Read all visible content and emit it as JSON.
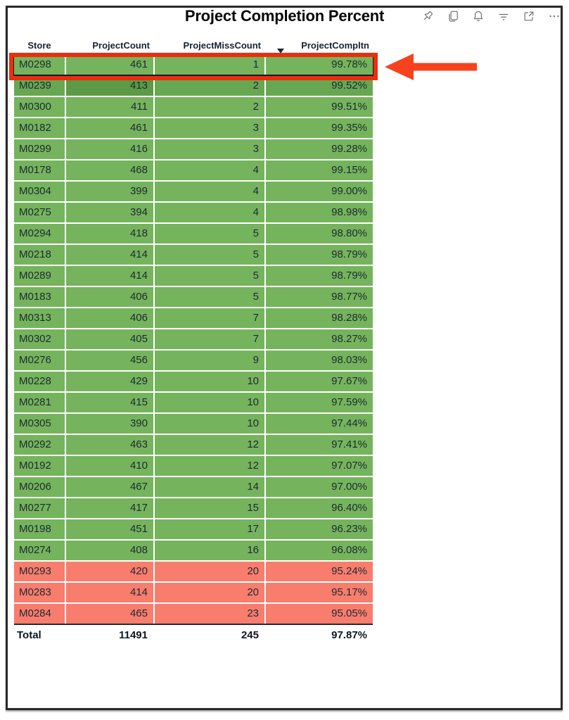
{
  "title": "Project Completion Percent",
  "toolbar": {
    "icons": [
      {
        "name": "pin-icon"
      },
      {
        "name": "copy-icon"
      },
      {
        "name": "alerts-bell-icon"
      },
      {
        "name": "filter-icon"
      },
      {
        "name": "popout-focus-icon"
      },
      {
        "name": "more-options-icon"
      }
    ]
  },
  "table": {
    "columns": [
      {
        "key": "store",
        "label": "Store",
        "align": "center"
      },
      {
        "key": "project_count",
        "label": "ProjectCount",
        "align": "right"
      },
      {
        "key": "project_miss_count",
        "label": "ProjectMissCount",
        "align": "right"
      },
      {
        "key": "project_compltn",
        "label": "ProjectCompltn",
        "align": "right"
      }
    ],
    "sort_indicator": {
      "column": "project_compltn",
      "direction": "descending"
    },
    "rows": [
      {
        "store": "M0298",
        "project_count": "461",
        "project_miss_count": "1",
        "project_compltn": "99.78%",
        "band": "green"
      },
      {
        "store": "M0239",
        "project_count": "413",
        "project_miss_count": "2",
        "project_compltn": "99.52%",
        "band": "green",
        "tone": "darker",
        "hover_cell": 1
      },
      {
        "store": "M0300",
        "project_count": "411",
        "project_miss_count": "2",
        "project_compltn": "99.51%",
        "band": "green"
      },
      {
        "store": "M0182",
        "project_count": "461",
        "project_miss_count": "3",
        "project_compltn": "99.35%",
        "band": "green"
      },
      {
        "store": "M0299",
        "project_count": "416",
        "project_miss_count": "3",
        "project_compltn": "99.28%",
        "band": "green"
      },
      {
        "store": "M0178",
        "project_count": "468",
        "project_miss_count": "4",
        "project_compltn": "99.15%",
        "band": "green"
      },
      {
        "store": "M0304",
        "project_count": "399",
        "project_miss_count": "4",
        "project_compltn": "99.00%",
        "band": "green"
      },
      {
        "store": "M0275",
        "project_count": "394",
        "project_miss_count": "4",
        "project_compltn": "98.98%",
        "band": "green"
      },
      {
        "store": "M0294",
        "project_count": "418",
        "project_miss_count": "5",
        "project_compltn": "98.80%",
        "band": "green"
      },
      {
        "store": "M0218",
        "project_count": "414",
        "project_miss_count": "5",
        "project_compltn": "98.79%",
        "band": "green"
      },
      {
        "store": "M0289",
        "project_count": "414",
        "project_miss_count": "5",
        "project_compltn": "98.79%",
        "band": "green"
      },
      {
        "store": "M0183",
        "project_count": "406",
        "project_miss_count": "5",
        "project_compltn": "98.77%",
        "band": "green"
      },
      {
        "store": "M0313",
        "project_count": "406",
        "project_miss_count": "7",
        "project_compltn": "98.28%",
        "band": "green"
      },
      {
        "store": "M0302",
        "project_count": "405",
        "project_miss_count": "7",
        "project_compltn": "98.27%",
        "band": "green"
      },
      {
        "store": "M0276",
        "project_count": "456",
        "project_miss_count": "9",
        "project_compltn": "98.03%",
        "band": "green"
      },
      {
        "store": "M0228",
        "project_count": "429",
        "project_miss_count": "10",
        "project_compltn": "97.67%",
        "band": "green"
      },
      {
        "store": "M0281",
        "project_count": "415",
        "project_miss_count": "10",
        "project_compltn": "97.59%",
        "band": "green"
      },
      {
        "store": "M0305",
        "project_count": "390",
        "project_miss_count": "10",
        "project_compltn": "97.44%",
        "band": "green"
      },
      {
        "store": "M0292",
        "project_count": "463",
        "project_miss_count": "12",
        "project_compltn": "97.41%",
        "band": "green"
      },
      {
        "store": "M0192",
        "project_count": "410",
        "project_miss_count": "12",
        "project_compltn": "97.07%",
        "band": "green"
      },
      {
        "store": "M0206",
        "project_count": "467",
        "project_miss_count": "14",
        "project_compltn": "97.00%",
        "band": "green"
      },
      {
        "store": "M0277",
        "project_count": "417",
        "project_miss_count": "15",
        "project_compltn": "96.40%",
        "band": "green"
      },
      {
        "store": "M0198",
        "project_count": "451",
        "project_miss_count": "17",
        "project_compltn": "96.23%",
        "band": "green"
      },
      {
        "store": "M0274",
        "project_count": "408",
        "project_miss_count": "16",
        "project_compltn": "96.08%",
        "band": "green"
      },
      {
        "store": "M0293",
        "project_count": "420",
        "project_miss_count": "20",
        "project_compltn": "95.24%",
        "band": "red"
      },
      {
        "store": "M0283",
        "project_count": "414",
        "project_miss_count": "20",
        "project_compltn": "95.17%",
        "band": "red"
      },
      {
        "store": "M0284",
        "project_count": "465",
        "project_miss_count": "23",
        "project_compltn": "95.05%",
        "band": "red"
      }
    ],
    "total": {
      "label": "Total",
      "project_count": "11491",
      "project_miss_count": "245",
      "project_compltn": "97.87%"
    }
  },
  "annotation": {
    "highlighted_store": "M0298",
    "shapes": [
      "red-rectangle-around-top-row",
      "red-arrow-pointing-left-at-top-row"
    ]
  },
  "colors": {
    "green": "#75b45c",
    "green_selected": "#68a751",
    "green_hover_cell": "#5c9a45",
    "red": "#f87d6d",
    "annotation_box": "#ec2d0e",
    "annotation_arrow": "#f7421d",
    "header_text": "#18222e",
    "cell_text": "#1e2a35",
    "icon_gray": "#6d6d6d"
  }
}
